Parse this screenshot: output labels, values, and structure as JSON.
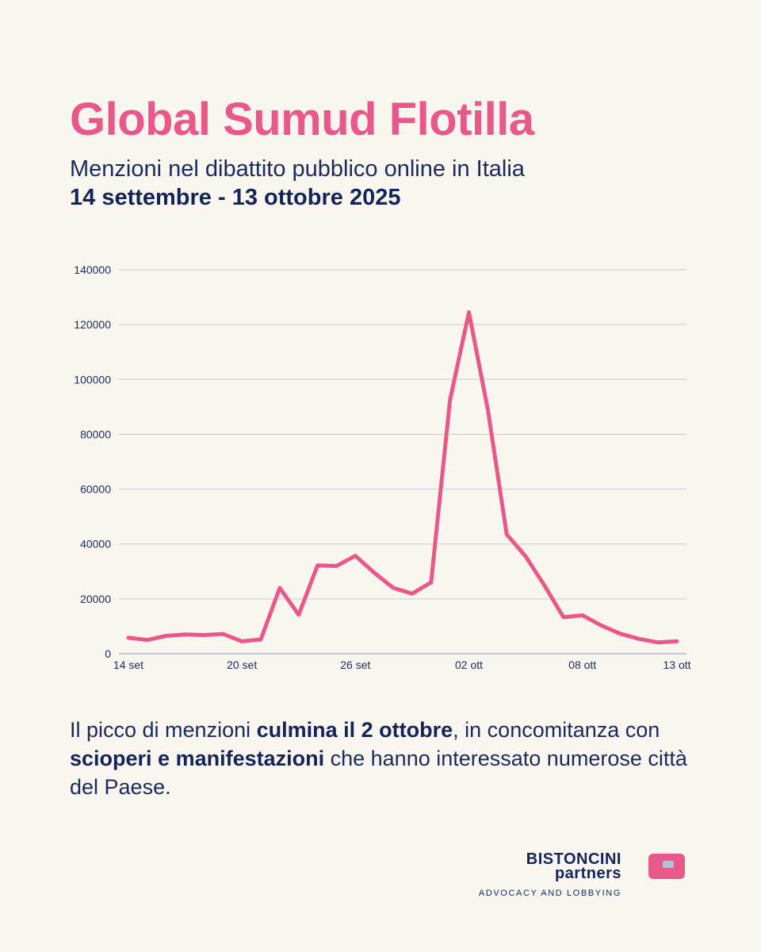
{
  "header": {
    "title": "Global Sumud Flotilla",
    "subtitle": "Menzioni nel dibattito pubblico online in Italia",
    "dates": "14 settembre - 13 ottobre 2025"
  },
  "chart_data": {
    "type": "line",
    "x": [
      "2025-09-14",
      "2025-09-15",
      "2025-09-16",
      "2025-09-17",
      "2025-09-18",
      "2025-09-19",
      "2025-09-20",
      "2025-09-21",
      "2025-09-22",
      "2025-09-23",
      "2025-09-24",
      "2025-09-25",
      "2025-09-26",
      "2025-09-27",
      "2025-09-28",
      "2025-09-29",
      "2025-09-30",
      "2025-10-01",
      "2025-10-02",
      "2025-10-03",
      "2025-10-04",
      "2025-10-05",
      "2025-10-06",
      "2025-10-07",
      "2025-10-08",
      "2025-10-09",
      "2025-10-10",
      "2025-10-11",
      "2025-10-12",
      "2025-10-13"
    ],
    "series": [
      {
        "color": "#e8588a",
        "values": [
          5800,
          5000,
          6500,
          7000,
          6800,
          7200,
          4500,
          5200,
          24000,
          14200,
          32200,
          32000,
          35700,
          29500,
          24000,
          21900,
          26000,
          92500,
          124500,
          89000,
          43500,
          35500,
          24800,
          13300,
          14000,
          10300,
          7300,
          5400,
          4100,
          4500
        ]
      }
    ],
    "x_tick_labels": [
      {
        "date": "2025-09-14",
        "label": "14 set"
      },
      {
        "date": "2025-09-20",
        "label": "20 set"
      },
      {
        "date": "2025-09-26",
        "label": "26 set"
      },
      {
        "date": "2025-10-02",
        "label": "02 ott"
      },
      {
        "date": "2025-10-08",
        "label": "08 ott"
      },
      {
        "date": "2025-10-13",
        "label": "13 ott"
      }
    ],
    "y_ticks": [
      0,
      20000,
      40000,
      60000,
      80000,
      100000,
      120000,
      140000
    ],
    "ylim": [
      0,
      140000
    ],
    "grid": true,
    "legend": "none"
  },
  "caption": {
    "part1": "Il picco di menzioni ",
    "bold1": "culmina il 2 ottobre",
    "part2": ", in concomitanza con ",
    "bold2": "scioperi e manifestazioni",
    "part3": " che hanno interessato numerose città del Paese."
  },
  "logo": {
    "name_line1": "BISTONCINI",
    "name_line2": "partners",
    "tagline": "ADVOCACY AND LOBBYING"
  },
  "colors": {
    "background": "#f9f6f0",
    "accent": "#e8588a",
    "navy": "#13245a"
  }
}
